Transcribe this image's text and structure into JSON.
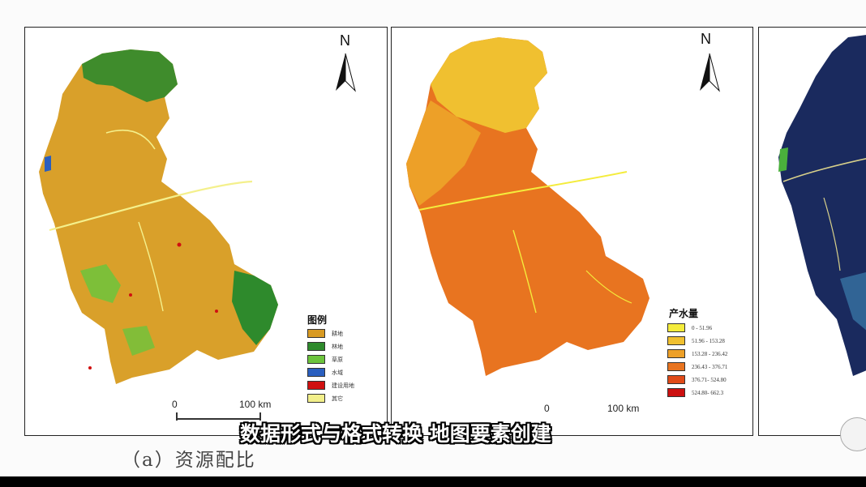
{
  "panel_a": {
    "north_label": "N",
    "legend_title": "图例",
    "legend": [
      {
        "label": "耕地",
        "color": "#d89a22"
      },
      {
        "label": "林地",
        "color": "#2e8a2c"
      },
      {
        "label": "草原",
        "color": "#6cc43c"
      },
      {
        "label": "水域",
        "color": "#2a5fbf"
      },
      {
        "label": "建设用地",
        "color": "#d01010"
      },
      {
        "label": "其它",
        "color": "#f2ef8a"
      }
    ],
    "scale": {
      "start": "0",
      "end": "100 km"
    },
    "caption": "（a）资源配比"
  },
  "panel_b": {
    "north_label": "N",
    "legend_title": "产水量",
    "legend": [
      {
        "label": "0 - 51.96",
        "color": "#f4ec3c"
      },
      {
        "label": "51.96 - 153.28",
        "color": "#f0c030"
      },
      {
        "label": "153.28 - 236.42",
        "color": "#eda028"
      },
      {
        "label": "236.43 - 376.71",
        "color": "#e87420"
      },
      {
        "label": "376.71- 524.80",
        "color": "#e04a18"
      },
      {
        "label": "524.80- 662.3",
        "color": "#cc1010"
      }
    ],
    "scale": {
      "start": "0",
      "end": "100 km"
    }
  },
  "subtitle": "数据形式与格式转换 地图要素创建"
}
